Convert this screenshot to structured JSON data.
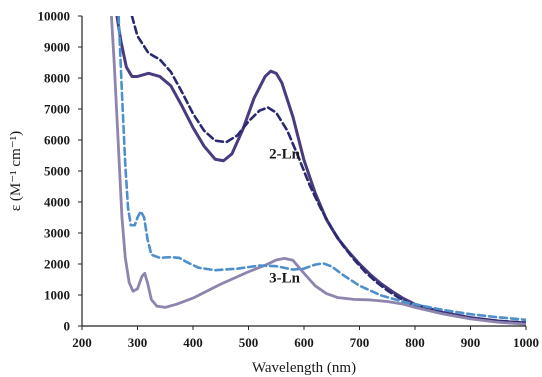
{
  "chart_data": {
    "type": "line",
    "xlabel": "Wavelength (nm)",
    "ylabel": "ε (M⁻¹ cm⁻¹)",
    "xlim": [
      200,
      1000
    ],
    "ylim": [
      0,
      10000
    ],
    "x_ticks": [
      200,
      300,
      400,
      500,
      600,
      700,
      800,
      900,
      1000
    ],
    "y_ticks": [
      0,
      1000,
      2000,
      3000,
      4000,
      5000,
      6000,
      7000,
      8000,
      9000,
      10000
    ],
    "annotations": [
      {
        "text": "2-Ln",
        "x": 565,
        "y": 5400
      },
      {
        "text": "3-Ln",
        "x": 565,
        "y": 1400
      }
    ],
    "colors": {
      "dark_solid": "#4a3a7e",
      "dark_dashed": "#2a2a72",
      "light_solid": "#8e84ad",
      "light_dashed": "#4f8fcb"
    },
    "series": [
      {
        "style": "dark-solid",
        "points": [
          [
            263,
            10000
          ],
          [
            270,
            9200
          ],
          [
            280,
            8350
          ],
          [
            290,
            8050
          ],
          [
            300,
            8050
          ],
          [
            320,
            8150
          ],
          [
            340,
            8050
          ],
          [
            360,
            7750
          ],
          [
            380,
            7100
          ],
          [
            400,
            6400
          ],
          [
            420,
            5800
          ],
          [
            440,
            5380
          ],
          [
            455,
            5330
          ],
          [
            470,
            5550
          ],
          [
            490,
            6350
          ],
          [
            510,
            7350
          ],
          [
            530,
            8050
          ],
          [
            540,
            8220
          ],
          [
            550,
            8150
          ],
          [
            560,
            7850
          ],
          [
            580,
            6750
          ],
          [
            600,
            5350
          ],
          [
            620,
            4300
          ],
          [
            640,
            3450
          ],
          [
            660,
            2850
          ],
          [
            680,
            2400
          ],
          [
            700,
            2000
          ],
          [
            720,
            1650
          ],
          [
            740,
            1350
          ],
          [
            760,
            1100
          ],
          [
            780,
            880
          ],
          [
            800,
            700
          ],
          [
            850,
            440
          ],
          [
            900,
            270
          ],
          [
            950,
            160
          ],
          [
            1000,
            100
          ]
        ]
      },
      {
        "style": "dark-dashed",
        "points": [
          [
            290,
            10000
          ],
          [
            300,
            9350
          ],
          [
            320,
            8800
          ],
          [
            340,
            8600
          ],
          [
            360,
            8200
          ],
          [
            380,
            7550
          ],
          [
            400,
            6850
          ],
          [
            420,
            6300
          ],
          [
            440,
            5980
          ],
          [
            460,
            5930
          ],
          [
            480,
            6150
          ],
          [
            500,
            6600
          ],
          [
            520,
            6950
          ],
          [
            535,
            7050
          ],
          [
            550,
            6880
          ],
          [
            570,
            6300
          ],
          [
            590,
            5450
          ],
          [
            610,
            4550
          ],
          [
            630,
            3800
          ],
          [
            650,
            3150
          ],
          [
            670,
            2600
          ],
          [
            690,
            2150
          ],
          [
            710,
            1750
          ],
          [
            730,
            1420
          ],
          [
            750,
            1150
          ],
          [
            770,
            920
          ],
          [
            790,
            740
          ],
          [
            800,
            660
          ],
          [
            850,
            420
          ],
          [
            900,
            260
          ],
          [
            950,
            160
          ],
          [
            1000,
            110
          ]
        ]
      },
      {
        "style": "light-solid",
        "points": [
          [
            253,
            10000
          ],
          [
            258,
            8500
          ],
          [
            265,
            6000
          ],
          [
            272,
            3500
          ],
          [
            278,
            2200
          ],
          [
            285,
            1400
          ],
          [
            292,
            1120
          ],
          [
            300,
            1200
          ],
          [
            308,
            1600
          ],
          [
            313,
            1700
          ],
          [
            318,
            1400
          ],
          [
            325,
            850
          ],
          [
            335,
            640
          ],
          [
            350,
            600
          ],
          [
            370,
            700
          ],
          [
            400,
            900
          ],
          [
            450,
            1350
          ],
          [
            500,
            1750
          ],
          [
            530,
            1960
          ],
          [
            550,
            2130
          ],
          [
            565,
            2180
          ],
          [
            580,
            2120
          ],
          [
            600,
            1700
          ],
          [
            620,
            1300
          ],
          [
            640,
            1050
          ],
          [
            660,
            920
          ],
          [
            690,
            860
          ],
          [
            720,
            840
          ],
          [
            750,
            790
          ],
          [
            780,
            700
          ],
          [
            800,
            600
          ],
          [
            850,
            390
          ],
          [
            900,
            230
          ],
          [
            950,
            120
          ],
          [
            1000,
            60
          ]
        ]
      },
      {
        "style": "light-dashed",
        "points": [
          [
            266,
            10000
          ],
          [
            272,
            7500
          ],
          [
            278,
            5200
          ],
          [
            283,
            3800
          ],
          [
            288,
            3250
          ],
          [
            295,
            3250
          ],
          [
            300,
            3500
          ],
          [
            306,
            3700
          ],
          [
            312,
            3500
          ],
          [
            318,
            2800
          ],
          [
            325,
            2300
          ],
          [
            340,
            2200
          ],
          [
            360,
            2220
          ],
          [
            375,
            2200
          ],
          [
            390,
            2050
          ],
          [
            410,
            1880
          ],
          [
            440,
            1800
          ],
          [
            480,
            1850
          ],
          [
            520,
            1950
          ],
          [
            550,
            1930
          ],
          [
            580,
            1820
          ],
          [
            600,
            1850
          ],
          [
            620,
            1980
          ],
          [
            635,
            2020
          ],
          [
            650,
            1920
          ],
          [
            670,
            1650
          ],
          [
            700,
            1300
          ],
          [
            740,
            980
          ],
          [
            780,
            780
          ],
          [
            800,
            700
          ],
          [
            850,
            520
          ],
          [
            900,
            380
          ],
          [
            950,
            280
          ],
          [
            1000,
            200
          ]
        ]
      }
    ]
  }
}
